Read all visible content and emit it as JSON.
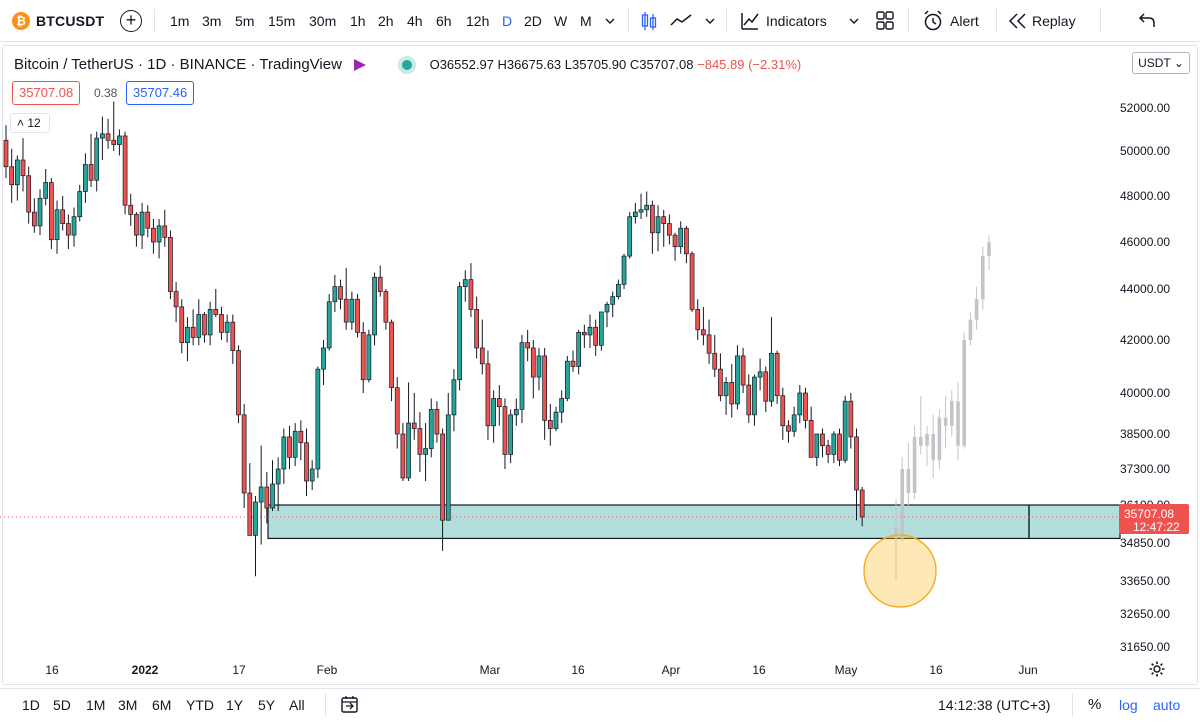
{
  "toolbar": {
    "symbol_badge": "₿",
    "symbol": "BTCUSDT",
    "intervals": [
      "1m",
      "3m",
      "5m",
      "15m",
      "30m",
      "1h",
      "2h",
      "4h",
      "6h",
      "12h",
      "D",
      "2D",
      "W",
      "M"
    ],
    "active_interval": "D",
    "indicators_label": "Indicators",
    "alert_label": "Alert",
    "replay_label": "Replay"
  },
  "legend": {
    "title": "Bitcoin / TetherUS · 1D · BINANCE · TradingView",
    "open": "O36552.97",
    "high": "H36675.63",
    "low": "L35705.90",
    "close": "C35707.08",
    "change": "−845.89 (−2.31%)"
  },
  "quote": {
    "bid": "35707.08",
    "spread": "0.38",
    "ask": "35707.46"
  },
  "collapse_count": "12",
  "currency_button": "USDT",
  "price_axis": {
    "labels": [
      "52000.00",
      "50000.00",
      "48000.00",
      "46000.00",
      "44000.00",
      "42000.00",
      "40000.00",
      "38500.00",
      "37300.00",
      "36100.00",
      "34850.00",
      "33650.00",
      "32650.00",
      "31650.00"
    ],
    "last_price": "35707.08",
    "countdown": "12:47:22"
  },
  "time_axis": {
    "labels": [
      "16",
      "2022",
      "17",
      "Feb",
      "Mar",
      "16",
      "Apr",
      "16",
      "May",
      "16",
      "Jun"
    ]
  },
  "colors": {
    "up": "#26a69a",
    "down": "#ef5350",
    "zone": "#b2dfdb",
    "projection": "#c2c4c8",
    "highlight": "#fbc02d",
    "accent": "#2962ff"
  },
  "bottom": {
    "ranges": [
      "1D",
      "5D",
      "1M",
      "3M",
      "6M",
      "YTD",
      "1Y",
      "5Y",
      "All"
    ],
    "clock": "14:12:38 (UTC+3)",
    "percent": "%",
    "log": "log",
    "auto": "auto"
  }
}
